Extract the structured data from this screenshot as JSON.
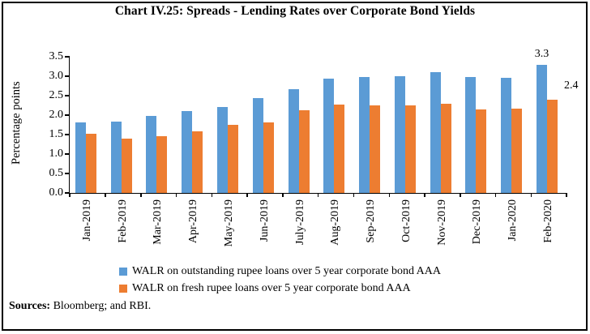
{
  "chart_data": {
    "type": "bar",
    "title": "Chart IV.25: Spreads - Lending Rates over Corporate Bond Yields",
    "ylabel": "Percentage points",
    "ylim": [
      0,
      3.5
    ],
    "yticks": [
      "0.0",
      "0.5",
      "1.0",
      "1.5",
      "2.0",
      "2.5",
      "3.0",
      "3.5"
    ],
    "grid": false,
    "legend_position": "bottom",
    "categories": [
      "Jan-2019",
      "Feb-2019",
      "Mar-2019",
      "Apr-2019",
      "May-2019",
      "Jun-2019",
      "July-2019",
      "Aug-2019",
      "Sep-2019",
      "Oct-2019",
      "Nov-2019",
      "Dec-2019",
      "Jan-2020",
      "Feb-2020"
    ],
    "series": [
      {
        "name": "WALR on outstanding rupee loans over 5 year corporate bond AAA",
        "color": "#5B9BD5",
        "values": [
          1.82,
          1.84,
          1.97,
          2.11,
          2.21,
          2.44,
          2.66,
          2.93,
          2.97,
          3.0,
          3.1,
          2.98,
          2.96,
          3.3
        ]
      },
      {
        "name": "WALR on fresh rupee loans over 5 year corporate bond AAA",
        "color": "#ED7D31",
        "values": [
          1.53,
          1.4,
          1.46,
          1.58,
          1.76,
          1.82,
          2.13,
          2.28,
          2.25,
          2.24,
          2.3,
          2.14,
          2.17,
          2.4
        ]
      }
    ],
    "annotations": [
      {
        "text": "3.3",
        "category_index": 13,
        "series_index": 0,
        "placement": "above"
      },
      {
        "text": "2.4",
        "category_index": 13,
        "series_index": 1,
        "placement": "right"
      }
    ]
  },
  "sources": {
    "label": "Sources:",
    "text": " Bloomberg; and RBI."
  }
}
